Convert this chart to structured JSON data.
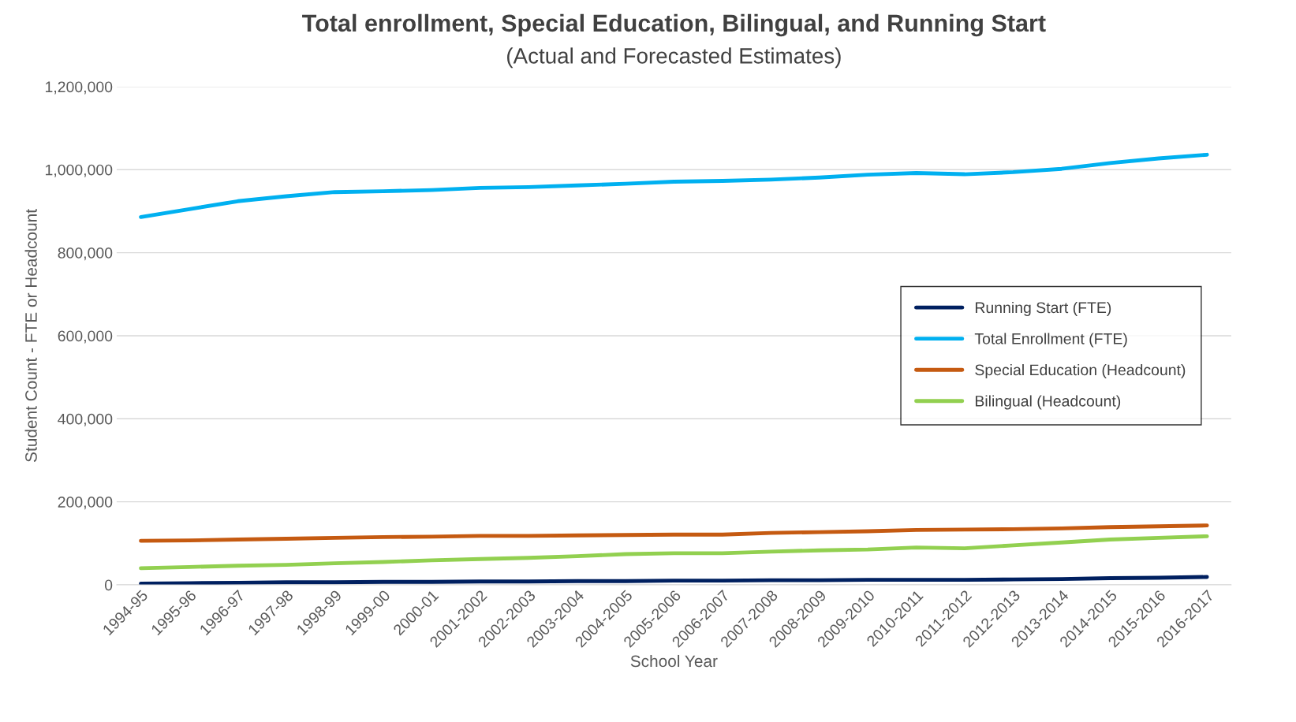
{
  "chart_data": {
    "type": "line",
    "title": "Total enrollment, Special Education, Bilingual, and Running Start",
    "subtitle": "(Actual and Forecasted Estimates)",
    "xlabel": "School Year",
    "ylabel": "Student Count - FTE or Headcount",
    "categories": [
      "1994-95",
      "1995-96",
      "1996-97",
      "1997-98",
      "1998-99",
      "1999-00",
      "2000-01",
      "2001-2002",
      "2002-2003",
      "2003-2004",
      "2004-2005",
      "2005-2006",
      "2006-2007",
      "2007-2008",
      "2008-2009",
      "2009-2010",
      "2010-2011",
      "2011-2012",
      "2012-2013",
      "2013-2014",
      "2014-2015",
      "2015-2016",
      "2016-2017"
    ],
    "series": [
      {
        "name": "Running Start (FTE)",
        "color": "#002060",
        "values": [
          3000,
          4000,
          5000,
          6000,
          6000,
          7000,
          7000,
          8000,
          8000,
          9000,
          9000,
          10000,
          10000,
          11000,
          11000,
          12000,
          12000,
          12000,
          13000,
          14000,
          16000,
          17000,
          19000
        ]
      },
      {
        "name": "Total Enrollment (FTE)",
        "color": "#00b0f0",
        "values": [
          886000,
          905000,
          924000,
          936000,
          946000,
          948000,
          951000,
          956000,
          958000,
          962000,
          966000,
          971000,
          973000,
          976000,
          981000,
          988000,
          992000,
          989000,
          994000,
          1002000,
          1016000,
          1027000,
          1036000
        ]
      },
      {
        "name": "Special Education (Headcount)",
        "color": "#c55a11",
        "values": [
          106000,
          107000,
          109000,
          111000,
          113000,
          115000,
          116000,
          118000,
          118000,
          119000,
          120000,
          121000,
          121000,
          125000,
          127000,
          129000,
          132000,
          133000,
          134000,
          136000,
          139000,
          141000,
          143000
        ]
      },
      {
        "name": "Bilingual (Headcount)",
        "color": "#92d050",
        "values": [
          40000,
          43000,
          46000,
          48000,
          52000,
          55000,
          59000,
          62000,
          65000,
          69000,
          74000,
          76000,
          76000,
          80000,
          83000,
          85000,
          90000,
          88000,
          95000,
          102000,
          109000,
          113000,
          117000
        ]
      }
    ],
    "ylim": [
      0,
      1200000
    ],
    "yticks": [
      {
        "value": 0,
        "label": "0"
      },
      {
        "value": 200000,
        "label": "200,000"
      },
      {
        "value": 400000,
        "label": "400,000"
      },
      {
        "value": 600000,
        "label": "600,000"
      },
      {
        "value": 800000,
        "label": "800,000"
      },
      {
        "value": 1000000,
        "label": "1,000,000"
      },
      {
        "value": 1200000,
        "label": "1,200,000"
      }
    ],
    "grid": "y",
    "legend": "right",
    "marker": "none",
    "line_style": "solid"
  }
}
